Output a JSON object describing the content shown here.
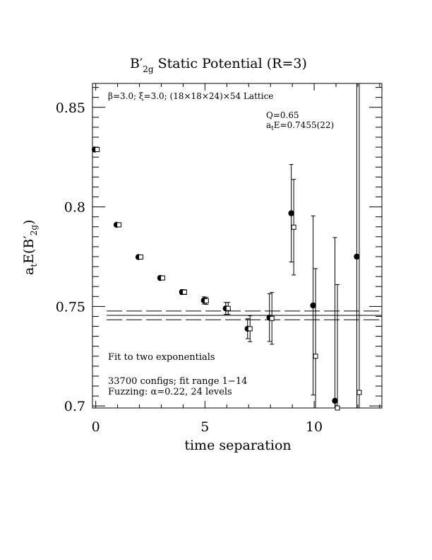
{
  "chart_data": {
    "type": "scatter",
    "title": "B′",
    "title_sub": "2g",
    "title_tail": " Static Potential (R=3)",
    "xlabel": "time separation",
    "ylabel": "a",
    "ylabel_t": "t",
    "ylabel_mid": "E(B′",
    "ylabel_sub": "2g",
    "ylabel_end": ")",
    "xlim": [
      -0.15,
      13.1
    ],
    "ylim": [
      0.699,
      0.862
    ],
    "x_ticks": [
      0,
      5,
      10
    ],
    "x_tick_labels": [
      "0",
      "5",
      "10"
    ],
    "y_ticks": [
      0.7,
      0.75,
      0.8,
      0.85
    ],
    "y_tick_labels": [
      "0.7",
      "0.75",
      "0.8",
      "0.85"
    ],
    "annotation_top": "β=3.0; ξ=3.0; (18×18×24)×54 Lattice",
    "fit_q": "Q=0.65",
    "fit_e_prefix": "a",
    "fit_e_sub": "t",
    "fit_e_rest": "E=0.7455(22)",
    "fit_note": "Fit to two exponentials",
    "config_note": "33700 configs; fit range 1−14",
    "fuzz_note": "Fuzzing: α=0.22, 24 levels",
    "fit_band": {
      "center": 0.7455,
      "lower": 0.7433,
      "upper": 0.7477,
      "x_start": 0.5
    },
    "series": [
      {
        "marker": "filled-circle",
        "points": [
          {
            "x": 0,
            "y": 0.8288,
            "err": 0.0006
          },
          {
            "x": 1,
            "y": 0.791,
            "err": 0.0008
          },
          {
            "x": 2,
            "y": 0.7748,
            "err": 0.0008
          },
          {
            "x": 3,
            "y": 0.7643,
            "err": 0.001
          },
          {
            "x": 4,
            "y": 0.7572,
            "err": 0.0012
          },
          {
            "x": 5,
            "y": 0.753,
            "err": 0.0018
          },
          {
            "x": 6,
            "y": 0.749,
            "err": 0.003
          },
          {
            "x": 7,
            "y": 0.7388,
            "err": 0.005
          },
          {
            "x": 8,
            "y": 0.7444,
            "err": 0.012
          },
          {
            "x": 9,
            "y": 0.7968,
            "err": 0.0245
          },
          {
            "x": 10,
            "y": 0.7505,
            "err": 0.045
          },
          {
            "x": 11,
            "y": 0.7026,
            "err": 0.082
          },
          {
            "x": 12,
            "y": 0.775,
            "err": 0.16
          }
        ]
      },
      {
        "marker": "open-square",
        "points": [
          {
            "x": 0,
            "y": 0.8288,
            "err": 0.0006
          },
          {
            "x": 1,
            "y": 0.791,
            "err": 0.0008
          },
          {
            "x": 2,
            "y": 0.7748,
            "err": 0.0008
          },
          {
            "x": 3,
            "y": 0.7643,
            "err": 0.001
          },
          {
            "x": 4,
            "y": 0.7572,
            "err": 0.0012
          },
          {
            "x": 5,
            "y": 0.7528,
            "err": 0.0018
          },
          {
            "x": 6,
            "y": 0.749,
            "err": 0.003
          },
          {
            "x": 7,
            "y": 0.7388,
            "err": 0.0065
          },
          {
            "x": 8,
            "y": 0.744,
            "err": 0.013
          },
          {
            "x": 9,
            "y": 0.7898,
            "err": 0.024
          },
          {
            "x": 10,
            "y": 0.725,
            "err": 0.044
          },
          {
            "x": 11,
            "y": 0.699,
            "err": 0.062
          },
          {
            "x": 12,
            "y": 0.7068,
            "err": 0.16
          }
        ]
      }
    ]
  }
}
